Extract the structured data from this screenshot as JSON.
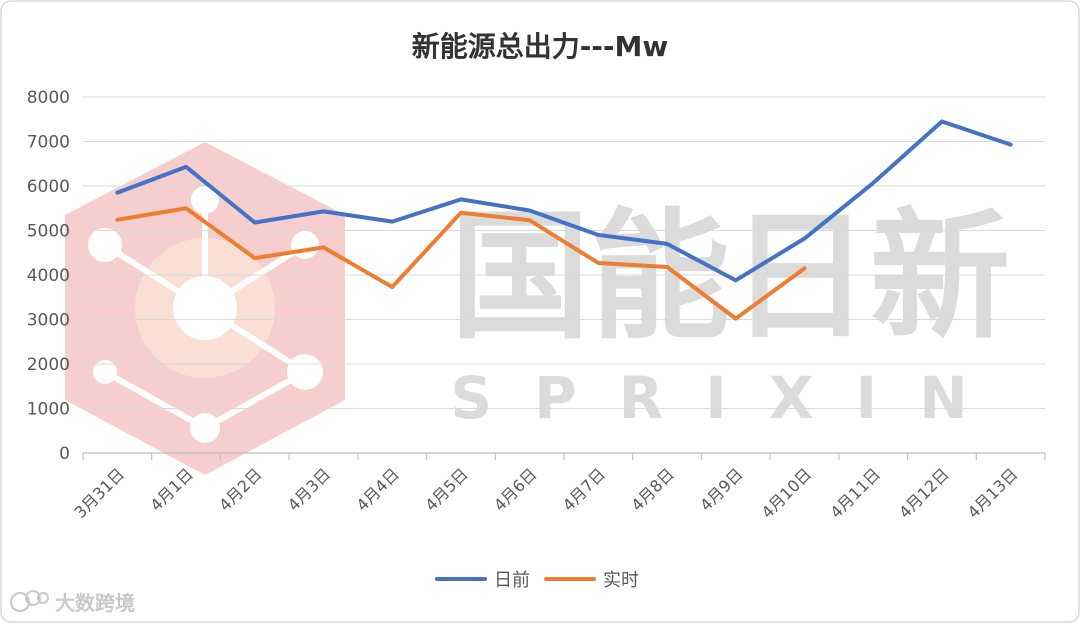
{
  "chart_data": {
    "type": "line",
    "title": "新能源总出力---Mw",
    "xlabel": "",
    "ylabel": "",
    "ylim": [
      0,
      8000
    ],
    "yticks": [
      0,
      1000,
      2000,
      3000,
      4000,
      5000,
      6000,
      7000,
      8000
    ],
    "grid": true,
    "legend_position": "bottom",
    "categories": [
      "3月31日",
      "4月1日",
      "4月2日",
      "4月3日",
      "4月4日",
      "4月5日",
      "4月6日",
      "4月7日",
      "4月8日",
      "4月9日",
      "4月10日",
      "4月11日",
      "4月12日",
      "4月13日"
    ],
    "series": [
      {
        "name": "日前",
        "color": "#4472c4",
        "values": [
          5850,
          6430,
          5180,
          5430,
          5200,
          5700,
          5450,
          4900,
          4700,
          3880,
          4820,
          6070,
          7450,
          6930
        ]
      },
      {
        "name": "实时",
        "color": "#ed7d31",
        "values": [
          5240,
          5500,
          4380,
          4620,
          3730,
          5400,
          5230,
          4270,
          4180,
          3020,
          4150,
          null,
          null,
          null
        ]
      }
    ]
  },
  "watermark": {
    "chinese": "国能日新",
    "latin": "SPRIXIN",
    "color": "#cfcfcf",
    "logo_color": "#f4b9b9"
  },
  "footer_brand": {
    "text": "大数跨境",
    "icon": "chat-bubble-logo-icon"
  }
}
